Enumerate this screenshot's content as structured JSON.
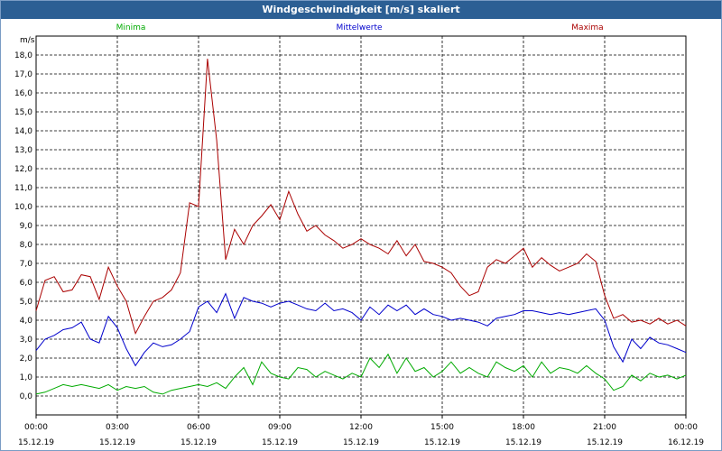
{
  "window": {
    "title": "Windgeschwindigkeit [m/s] skaliert"
  },
  "chart_data": {
    "type": "line",
    "title": "Windgeschwindigkeit [m/s] skaliert",
    "ylabel": "m/s",
    "xlabel": "",
    "ylim": [
      -1,
      19
    ],
    "y_ticks": [
      "0,0",
      "1,0",
      "2,0",
      "3,0",
      "4,0",
      "5,0",
      "6,0",
      "7,0",
      "8,0",
      "9,0",
      "10,0",
      "11,0",
      "12,0",
      "13,0",
      "14,0",
      "15,0",
      "16,0",
      "17,0",
      "18,0"
    ],
    "x_ticks": [
      {
        "time": "00:00",
        "date": "15.12.19"
      },
      {
        "time": "03:00",
        "date": "15.12.19"
      },
      {
        "time": "06:00",
        "date": "15.12.19"
      },
      {
        "time": "09:00",
        "date": "15.12.19"
      },
      {
        "time": "12:00",
        "date": "15.12.19"
      },
      {
        "time": "15:00",
        "date": "15.12.19"
      },
      {
        "time": "18:00",
        "date": "15.12.19"
      },
      {
        "time": "21:00",
        "date": "15.12.19"
      },
      {
        "time": "00:00",
        "date": "16.12.19"
      }
    ],
    "x_hours": [
      0,
      0.33,
      0.67,
      1,
      1.33,
      1.67,
      2,
      2.33,
      2.67,
      3,
      3.33,
      3.67,
      4,
      4.33,
      4.67,
      5,
      5.33,
      5.67,
      6,
      6.33,
      6.67,
      7,
      7.33,
      7.67,
      8,
      8.33,
      8.67,
      9,
      9.33,
      9.67,
      10,
      10.33,
      10.67,
      11,
      11.33,
      11.67,
      12,
      12.33,
      12.67,
      13,
      13.33,
      13.67,
      14,
      14.33,
      14.67,
      15,
      15.33,
      15.67,
      16,
      16.33,
      16.67,
      17,
      17.33,
      17.67,
      18,
      18.33,
      18.67,
      19,
      19.33,
      19.67,
      20,
      20.33,
      20.67,
      21,
      21.33,
      21.67,
      22,
      22.33,
      22.67,
      23,
      23.33,
      23.67,
      24
    ],
    "grid": true,
    "legend_position": "top",
    "series": [
      {
        "name": "Minima",
        "color": "#00aa00",
        "values": [
          0.1,
          0.2,
          0.4,
          0.6,
          0.5,
          0.6,
          0.5,
          0.4,
          0.6,
          0.3,
          0.5,
          0.4,
          0.5,
          0.2,
          0.1,
          0.3,
          0.4,
          0.5,
          0.6,
          0.5,
          0.7,
          0.4,
          1.0,
          1.5,
          0.6,
          1.8,
          1.2,
          1.0,
          0.9,
          1.5,
          1.4,
          1.0,
          1.3,
          1.1,
          0.9,
          1.2,
          1.0,
          2.0,
          1.5,
          2.2,
          1.2,
          2.0,
          1.3,
          1.5,
          1.0,
          1.3,
          1.8,
          1.2,
          1.5,
          1.2,
          1.0,
          1.8,
          1.5,
          1.3,
          1.6,
          1.0,
          1.8,
          1.2,
          1.5,
          1.4,
          1.2,
          1.6,
          1.2,
          0.9,
          0.3,
          0.5,
          1.1,
          0.8,
          1.2,
          1.0,
          1.1,
          0.9,
          1.1
        ]
      },
      {
        "name": "Mittelwerte",
        "color": "#0000cc",
        "values": [
          2.4,
          3.0,
          3.2,
          3.5,
          3.6,
          3.9,
          3.0,
          2.8,
          4.2,
          3.6,
          2.5,
          1.6,
          2.3,
          2.8,
          2.6,
          2.7,
          3.0,
          3.4,
          4.7,
          5.0,
          4.4,
          5.4,
          4.1,
          5.2,
          5.0,
          4.9,
          4.7,
          4.9,
          5.0,
          4.8,
          4.6,
          4.5,
          4.9,
          4.5,
          4.6,
          4.4,
          4.0,
          4.7,
          4.3,
          4.8,
          4.5,
          4.8,
          4.3,
          4.6,
          4.3,
          4.2,
          4.0,
          4.1,
          4.0,
          3.9,
          3.7,
          4.1,
          4.2,
          4.3,
          4.5,
          4.5,
          4.4,
          4.3,
          4.4,
          4.3,
          4.4,
          4.5,
          4.6,
          4.0,
          2.6,
          1.8,
          3.0,
          2.5,
          3.1,
          2.8,
          2.7,
          2.5,
          2.3
        ]
      },
      {
        "name": "Maxima",
        "color": "#aa0000",
        "values": [
          4.5,
          6.1,
          6.3,
          5.5,
          5.6,
          6.4,
          6.3,
          5.1,
          6.8,
          5.8,
          5.0,
          3.3,
          4.2,
          5.0,
          5.2,
          5.6,
          6.5,
          10.2,
          10.0,
          17.8,
          13.5,
          7.2,
          8.8,
          8.0,
          9.0,
          9.5,
          10.1,
          9.3,
          10.8,
          9.6,
          8.7,
          9.0,
          8.5,
          8.2,
          7.8,
          8.0,
          8.3,
          8.0,
          7.8,
          7.5,
          8.2,
          7.4,
          8.0,
          7.1,
          7.0,
          6.8,
          6.5,
          5.8,
          5.3,
          5.5,
          6.8,
          7.2,
          7.0,
          7.4,
          7.8,
          6.8,
          7.3,
          6.9,
          6.6,
          6.8,
          7.0,
          7.5,
          7.1,
          5.3,
          4.1,
          4.3,
          3.9,
          4.0,
          3.8,
          4.1,
          3.8,
          4.0,
          3.7
        ]
      }
    ]
  }
}
